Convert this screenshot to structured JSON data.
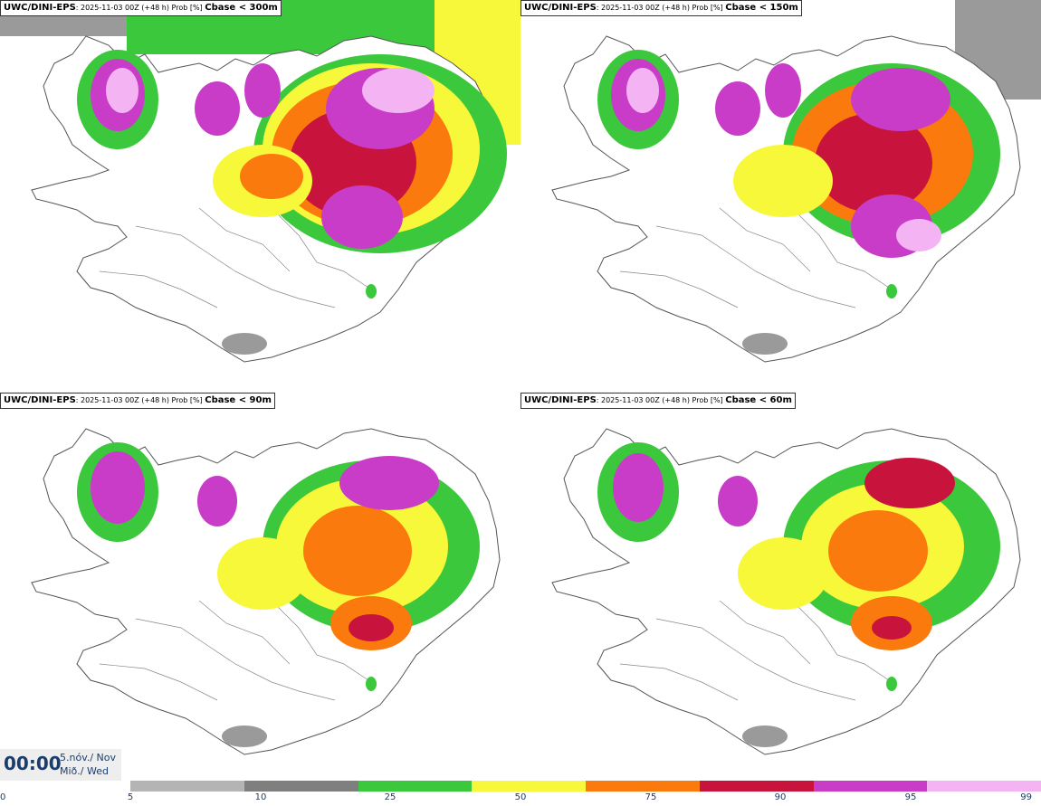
{
  "panels": [
    {
      "model": "UWC/DINI-EPS",
      "run": ": 2025-11-03 00Z (+48 h) Prob [%] ",
      "variable": "Cbase < 300m"
    },
    {
      "model": "UWC/DINI-EPS",
      "run": ": 2025-11-03 00Z (+48 h) Prob [%] ",
      "variable": "Cbase < 150m"
    },
    {
      "model": "UWC/DINI-EPS",
      "run": ": 2025-11-03 00Z (+48 h) Prob [%] ",
      "variable": "Cbase < 90m"
    },
    {
      "model": "UWC/DINI-EPS",
      "run": ": 2025-11-03 00Z (+48 h) Prob [%] ",
      "variable": "Cbase < 60m"
    }
  ],
  "time": {
    "clock": "00:00",
    "date_line1": "5.nóv./ Nov",
    "date_line2": "Mið./ Wed"
  },
  "legend": {
    "ticks": [
      "0",
      "5",
      "10",
      "25",
      "50",
      "75",
      "90",
      "95",
      "99"
    ],
    "bins": [
      {
        "from": "5",
        "to": "10",
        "color": "#b4b4b4"
      },
      {
        "from": "10",
        "to": "25",
        "color": "#7f7f7f"
      },
      {
        "from": "25",
        "to": "50",
        "color": "#3cc83c"
      },
      {
        "from": "50",
        "to": "75",
        "color": "#f8f83a"
      },
      {
        "from": "75",
        "to": "90",
        "color": "#fb7a0d"
      },
      {
        "from": "90",
        "to": "95",
        "color": "#c8143c"
      },
      {
        "from": "95",
        "to": "99",
        "color": "#c83cc8"
      },
      {
        "from": "99",
        "to": "100",
        "color": "#f4b4f4"
      }
    ]
  }
}
